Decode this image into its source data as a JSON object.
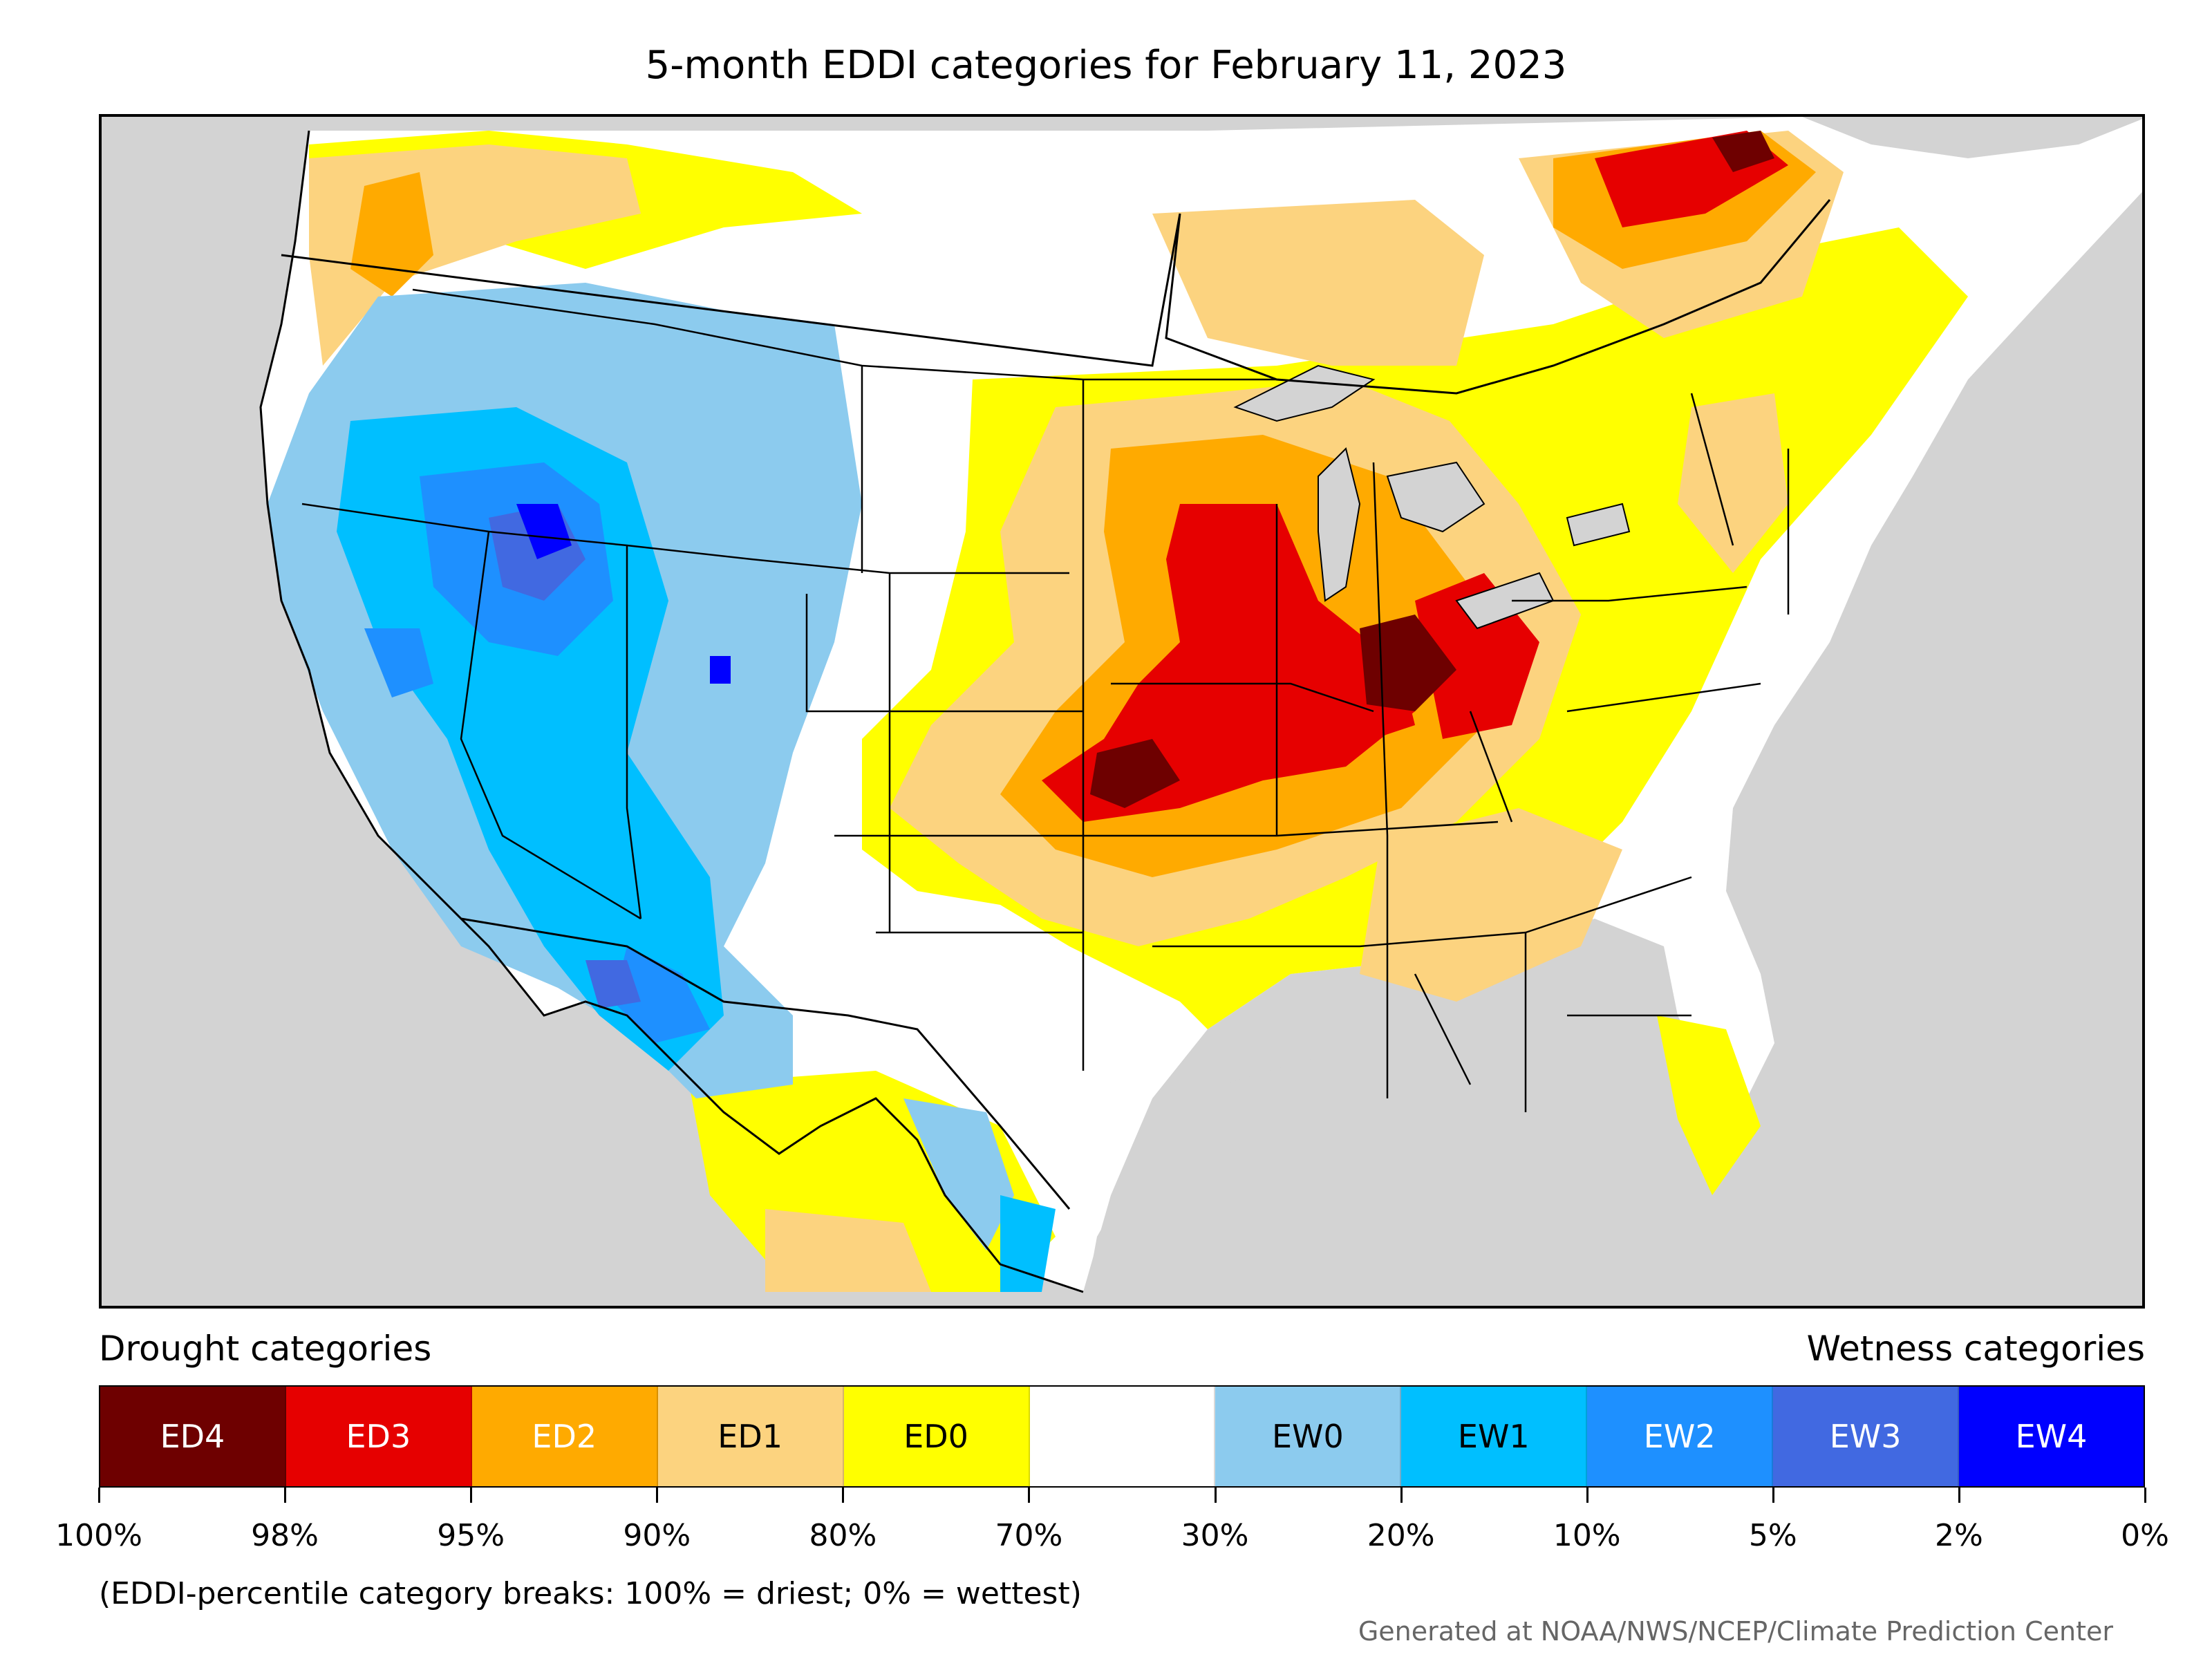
{
  "title": "5-month EDDI categories for February 11, 2023",
  "legend": {
    "drought_label": "Drought categories",
    "wetness_label": "Wetness categories",
    "categories": [
      {
        "label": "ED4",
        "color": "#6e0000",
        "text_color": "#ffffff"
      },
      {
        "label": "ED3",
        "color": "#e60000",
        "text_color": "#ffffff"
      },
      {
        "label": "ED2",
        "color": "#ffaa00",
        "text_color": "#ffffff"
      },
      {
        "label": "ED1",
        "color": "#fcd37f",
        "text_color": "#000000"
      },
      {
        "label": "ED0",
        "color": "#ffff00",
        "text_color": "#000000"
      },
      {
        "label": "",
        "color": "#ffffff",
        "text_color": "#000000"
      },
      {
        "label": "EW0",
        "color": "#8ccbee",
        "text_color": "#000000"
      },
      {
        "label": "EW1",
        "color": "#00bfff",
        "text_color": "#000000"
      },
      {
        "label": "EW2",
        "color": "#1e90ff",
        "text_color": "#ffffff"
      },
      {
        "label": "EW3",
        "color": "#4169e1",
        "text_color": "#ffffff"
      },
      {
        "label": "EW4",
        "color": "#0000ff",
        "text_color": "#ffffff"
      }
    ],
    "ticks": [
      "100%",
      "98%",
      "95%",
      "90%",
      "80%",
      "70%",
      "30%",
      "20%",
      "10%",
      "5%",
      "2%",
      "0%"
    ],
    "note": "(EDDI-percentile category breaks: 100% = driest; 0% = wettest)"
  },
  "credit": "Generated at NOAA/NWS/NCEP/Climate Prediction Center",
  "map": {
    "background_color": "#d3d3d3",
    "land_color": "#ffffff",
    "border_color": "#000000",
    "lake_color": "#d3d3d3"
  }
}
